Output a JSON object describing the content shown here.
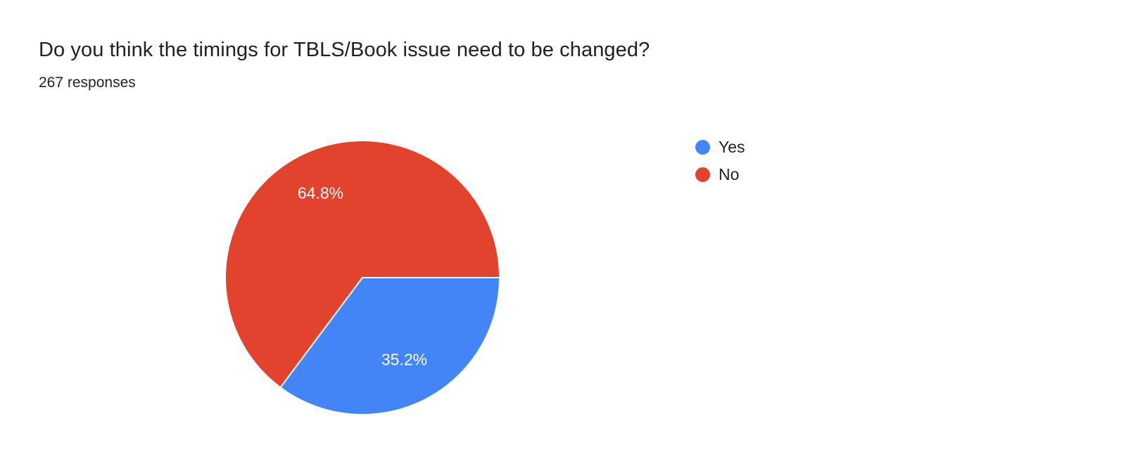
{
  "header": {
    "title": "Do you think the timings for TBLS/Book issue need to be changed?",
    "responses": "267 responses"
  },
  "chart_data": {
    "type": "pie",
    "title": "Do you think the timings for TBLS/Book issue need to be changed?",
    "subtitle": "267 responses",
    "categories": [
      "Yes",
      "No"
    ],
    "values": [
      35.2,
      64.8
    ],
    "slices": [
      {
        "label": "Yes",
        "value": 35.2,
        "display": "35.2%",
        "color": "#4285F4"
      },
      {
        "label": "No",
        "value": 64.8,
        "display": "64.8%",
        "color": "#E2432D"
      }
    ],
    "start_angle_deg_cw_from_north": 90,
    "direction": "clockwise",
    "legend_position": "right",
    "slice_label_color": "#ffffff",
    "slice_border_color": "#ffffff"
  }
}
